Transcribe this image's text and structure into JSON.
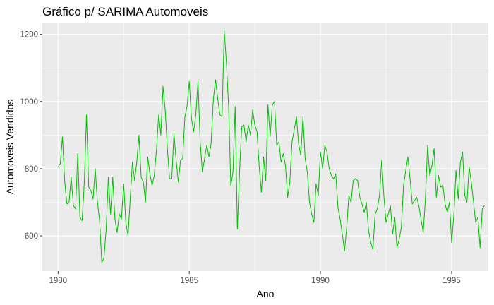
{
  "chart_data": {
    "type": "line",
    "title": "Gráfico p/ SARIMA Automoveis",
    "xlabel": "Ano",
    "ylabel": "Automoveis Vendidos",
    "xlim": [
      1979.4,
      1996.4
    ],
    "ylim": [
      495,
      1235
    ],
    "x_ticks": [
      1980,
      1985,
      1990,
      1995
    ],
    "x_tick_labels": [
      "1980",
      "1985",
      "1990",
      "1995"
    ],
    "y_ticks": [
      600,
      800,
      1000,
      1200
    ],
    "y_tick_labels": [
      "600",
      "800",
      "1000",
      "1200"
    ],
    "grid": true,
    "panel_background": "#ebebeb",
    "grid_color": "#ffffff",
    "line_color": "#00c000",
    "x_start": 1980,
    "x_step": 0.0833333,
    "series": [
      {
        "values": [
          805,
          815,
          895,
          765,
          695,
          700,
          775,
          690,
          680,
          845,
          655,
          645,
          760,
          960,
          745,
          735,
          710,
          800,
          700,
          645,
          520,
          535,
          620,
          775,
          665,
          775,
          650,
          610,
          665,
          650,
          755,
          640,
          600,
          710,
          820,
          765,
          820,
          900,
          775,
          760,
          700,
          835,
          785,
          750,
          780,
          855,
          960,
          900,
          1045,
          975,
          860,
          770,
          770,
          905,
          825,
          760,
          825,
          830,
          955,
          985,
          1060,
          950,
          910,
          960,
          1060,
          880,
          790,
          830,
          870,
          835,
          875,
          1005,
          1065,
          1010,
          960,
          955,
          1210,
          1115,
          985,
          750,
          790,
          985,
          620,
          790,
          925,
          930,
          880,
          930,
          900,
          975,
          930,
          910,
          805,
          730,
          835,
          765,
          990,
          895,
          990,
          1000,
          870,
          880,
          820,
          845,
          810,
          715,
          760,
          880,
          915,
          955,
          875,
          840,
          955,
          830,
          790,
          700,
          665,
          640,
          755,
          720,
          850,
          800,
          870,
          850,
          800,
          780,
          770,
          785,
          685,
          650,
          605,
          555,
          625,
          720,
          700,
          765,
          770,
          765,
          715,
          695,
          670,
          700,
          615,
          580,
          560,
          665,
          680,
          720,
          825,
          720,
          640,
          665,
          690,
          605,
          655,
          565,
          590,
          625,
          750,
          795,
          835,
          770,
          695,
          705,
          715,
          690,
          650,
          610,
          710,
          870,
          780,
          810,
          860,
          715,
          780,
          745,
          750,
          695,
          670,
          700,
          580,
          660,
          795,
          710,
          820,
          850,
          720,
          700,
          805,
          760,
          700,
          640,
          655,
          565,
          680,
          690
        ]
      }
    ]
  }
}
